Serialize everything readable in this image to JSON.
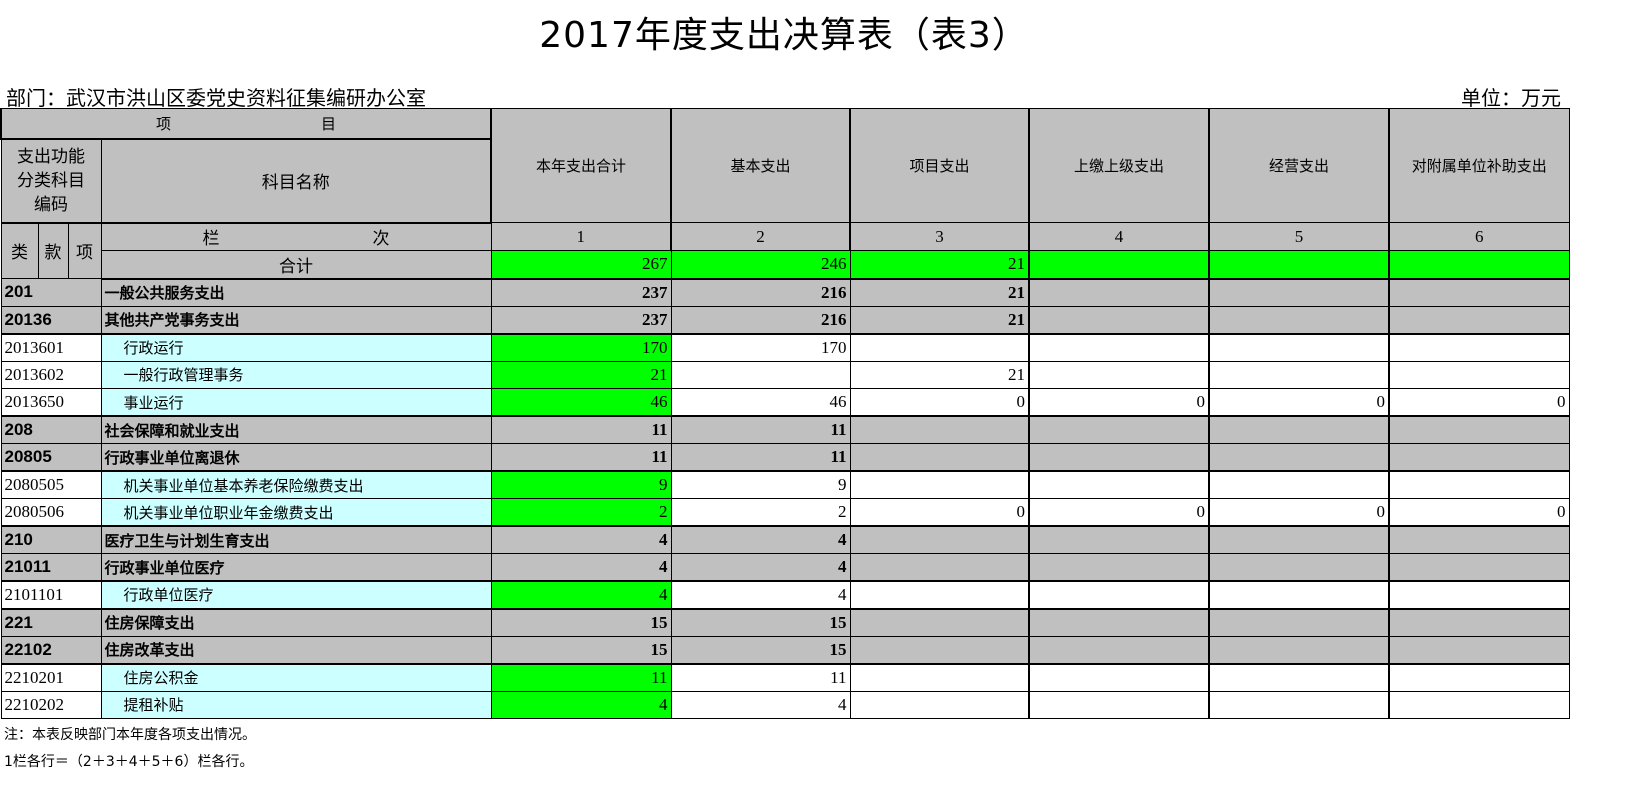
{
  "title": "2017年度支出决算表（表3）",
  "department": "部门：武汉市洪山区委党史资料征集编研办公室",
  "unit": "单位：万元",
  "header": {
    "item": "项　　　　　　　　　　目",
    "code_label": "支出功能分类科目编码",
    "name_label": "科目名称",
    "columns": [
      "本年支出合计",
      "基本支出",
      "项目支出",
      "上缴上级支出",
      "经营支出",
      "对附属单位补助支出"
    ],
    "lei": "类",
    "kuan": "款",
    "xiang": "项",
    "lanci": "栏　　　　　　　　　次",
    "col_numbers": [
      "1",
      "2",
      "3",
      "4",
      "5",
      "6"
    ],
    "total_label": "合计",
    "total_values": [
      "267",
      "246",
      "21",
      "",
      "",
      ""
    ]
  },
  "rows": [
    {
      "code": "201",
      "name": "一般公共服务支出",
      "level": "summary",
      "values": [
        "237",
        "216",
        "21",
        "",
        "",
        ""
      ]
    },
    {
      "code": "20136",
      "name": "其他共产党事务支出",
      "level": "summary",
      "values": [
        "237",
        "216",
        "21",
        "",
        "",
        ""
      ]
    },
    {
      "code": "2013601",
      "name": "行政运行",
      "level": "leaf",
      "values": [
        "170",
        "170",
        "",
        "",
        "",
        ""
      ]
    },
    {
      "code": "2013602",
      "name": "一般行政管理事务",
      "level": "leaf",
      "values": [
        "21",
        "",
        "21",
        "",
        "",
        ""
      ]
    },
    {
      "code": "2013650",
      "name": "事业运行",
      "level": "leaf",
      "values": [
        "46",
        "46",
        "0",
        "0",
        "0",
        "0"
      ]
    },
    {
      "code": "208",
      "name": "社会保障和就业支出",
      "level": "summary",
      "values": [
        "11",
        "11",
        "",
        "",
        "",
        ""
      ]
    },
    {
      "code": "20805",
      "name": "行政事业单位离退休",
      "level": "summary",
      "values": [
        "11",
        "11",
        "",
        "",
        "",
        ""
      ]
    },
    {
      "code": "2080505",
      "name": "机关事业单位基本养老保险缴费支出",
      "level": "leaf",
      "values": [
        "9",
        "9",
        "",
        "",
        "",
        ""
      ]
    },
    {
      "code": "2080506",
      "name": "机关事业单位职业年金缴费支出",
      "level": "leaf",
      "values": [
        "2",
        "2",
        "0",
        "0",
        "0",
        "0"
      ]
    },
    {
      "code": "210",
      "name": "医疗卫生与计划生育支出",
      "level": "summary",
      "values": [
        "4",
        "4",
        "",
        "",
        "",
        ""
      ]
    },
    {
      "code": "21011",
      "name": "行政事业单位医疗",
      "level": "summary",
      "values": [
        "4",
        "4",
        "",
        "",
        "",
        ""
      ]
    },
    {
      "code": "2101101",
      "name": "行政单位医疗",
      "level": "leaf",
      "values": [
        "4",
        "4",
        "",
        "",
        "",
        ""
      ]
    },
    {
      "code": "221",
      "name": "住房保障支出",
      "level": "summary",
      "values": [
        "15",
        "15",
        "",
        "",
        "",
        ""
      ]
    },
    {
      "code": "22102",
      "name": "住房改革支出",
      "level": "summary",
      "values": [
        "15",
        "15",
        "",
        "",
        "",
        ""
      ]
    },
    {
      "code": "2210201",
      "name": "住房公积金",
      "level": "leaf",
      "values": [
        "11",
        "11",
        "",
        "",
        "",
        ""
      ]
    },
    {
      "code": "2210202",
      "name": "提租补贴",
      "level": "leaf",
      "values": [
        "4",
        "4",
        "",
        "",
        "",
        ""
      ]
    }
  ],
  "notes": [
    "注：本表反映部门本年度各项支出情况。",
    "1栏各行＝（2＋3＋4＋5＋6）栏各行。"
  ],
  "colors": {
    "header_gray": "#c0c0c0",
    "total_green": "#00ff00",
    "leaf_name_cyan": "#ccffff"
  }
}
